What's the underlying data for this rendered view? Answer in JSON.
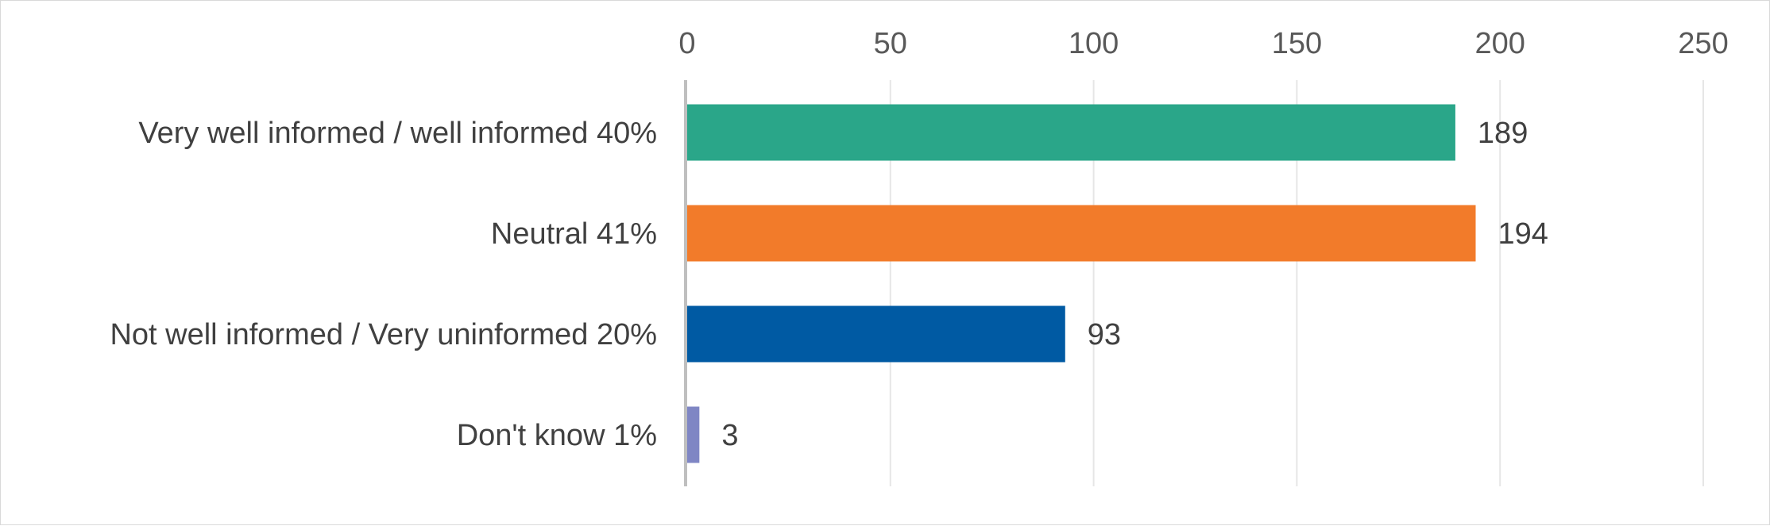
{
  "chart_data": {
    "type": "bar",
    "orientation": "horizontal",
    "categories": [
      "Very well informed / well informed  40%",
      "Neutral 41%",
      "Not well informed /  Very uninformed 20%",
      "Don't know 1%"
    ],
    "values": [
      189,
      194,
      93,
      3
    ],
    "data_labels": [
      "189",
      "194",
      "93",
      "3"
    ],
    "colors": [
      "#2aa689",
      "#f27b2a",
      "#005aa3",
      "#7f86c4"
    ],
    "xlim": [
      0,
      250
    ],
    "x_ticks": [
      0,
      50,
      100,
      150,
      200,
      250
    ],
    "x_tick_labels": [
      "0",
      "50",
      "100",
      "150",
      "200",
      "250"
    ],
    "x_axis_position": "top",
    "gridlines": true,
    "legend": "none"
  }
}
